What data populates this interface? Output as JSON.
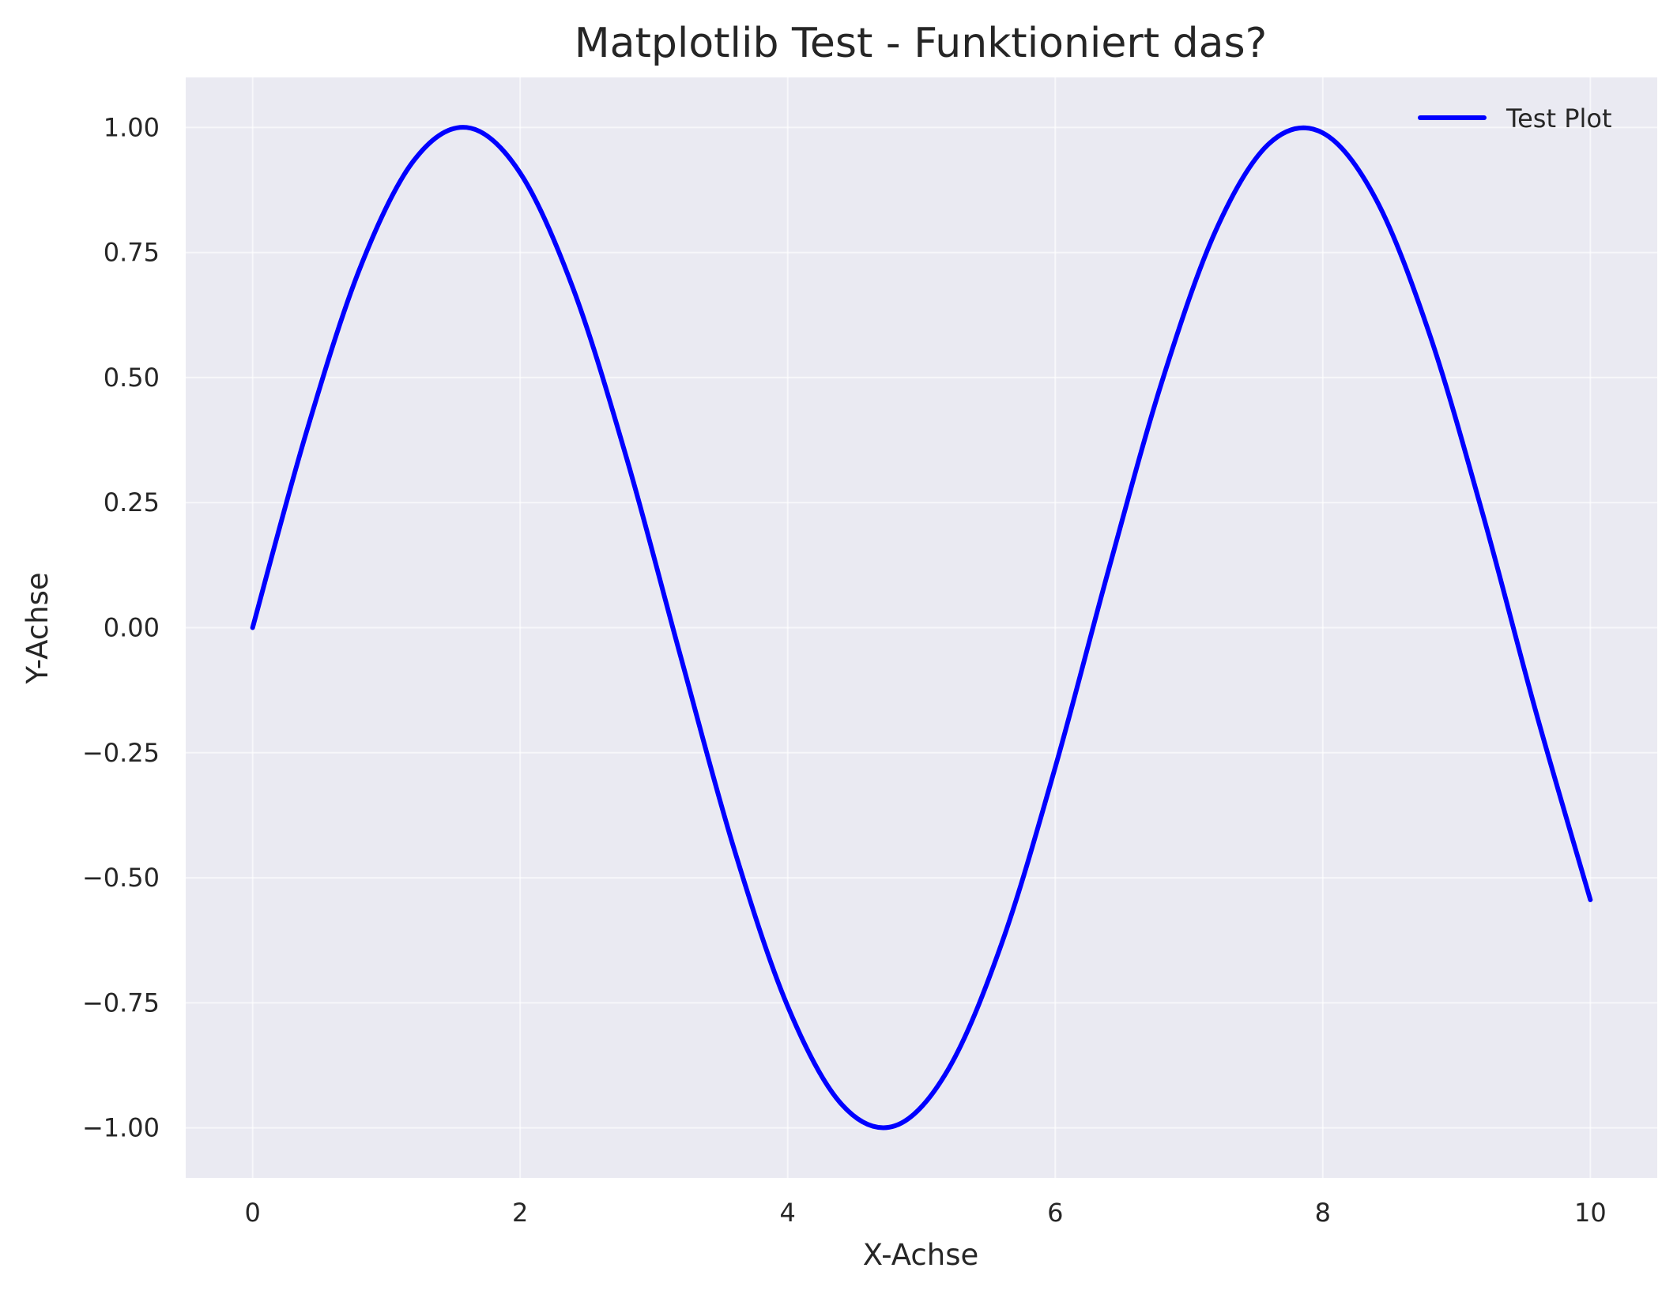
{
  "chart_data": {
    "type": "line",
    "title": "Matplotlib Test - Funktioniert das?",
    "xlabel": "X-Achse",
    "ylabel": "Y-Achse",
    "xlim": [
      -0.5,
      10.5
    ],
    "ylim": [
      -1.1,
      1.1
    ],
    "xticks": [
      0,
      2,
      4,
      6,
      8,
      10
    ],
    "xtick_labels": [
      "0",
      "2",
      "4",
      "6",
      "8",
      "10"
    ],
    "yticks": [
      1.0,
      0.75,
      0.5,
      0.25,
      0.0,
      -0.25,
      -0.5,
      -0.75,
      -1.0
    ],
    "ytick_labels": [
      "1.00",
      "0.75",
      "0.50",
      "0.25",
      "0.00",
      "−0.25",
      "−0.50",
      "−0.75",
      "−1.00"
    ],
    "grid": true,
    "legend_position": "top-right",
    "background_color": "#eaeaf2",
    "series": [
      {
        "name": "Test Plot",
        "color": "#0000ff",
        "x": [
          0,
          0.4,
          0.8,
          1.2,
          1.6,
          2.0,
          2.4,
          2.8,
          3.2,
          3.6,
          4.0,
          4.4,
          4.8,
          5.2,
          5.6,
          6.0,
          6.4,
          6.8,
          7.2,
          7.6,
          8.0,
          8.4,
          8.8,
          9.2,
          9.6,
          10.0
        ],
        "y": [
          0.0,
          0.389,
          0.717,
          0.932,
          1.0,
          0.909,
          0.675,
          0.335,
          -0.058,
          -0.443,
          -0.757,
          -0.952,
          -0.996,
          -0.883,
          -0.631,
          -0.279,
          0.117,
          0.494,
          0.794,
          0.968,
          0.989,
          0.855,
          0.585,
          0.223,
          -0.175,
          -0.544
        ]
      }
    ]
  }
}
